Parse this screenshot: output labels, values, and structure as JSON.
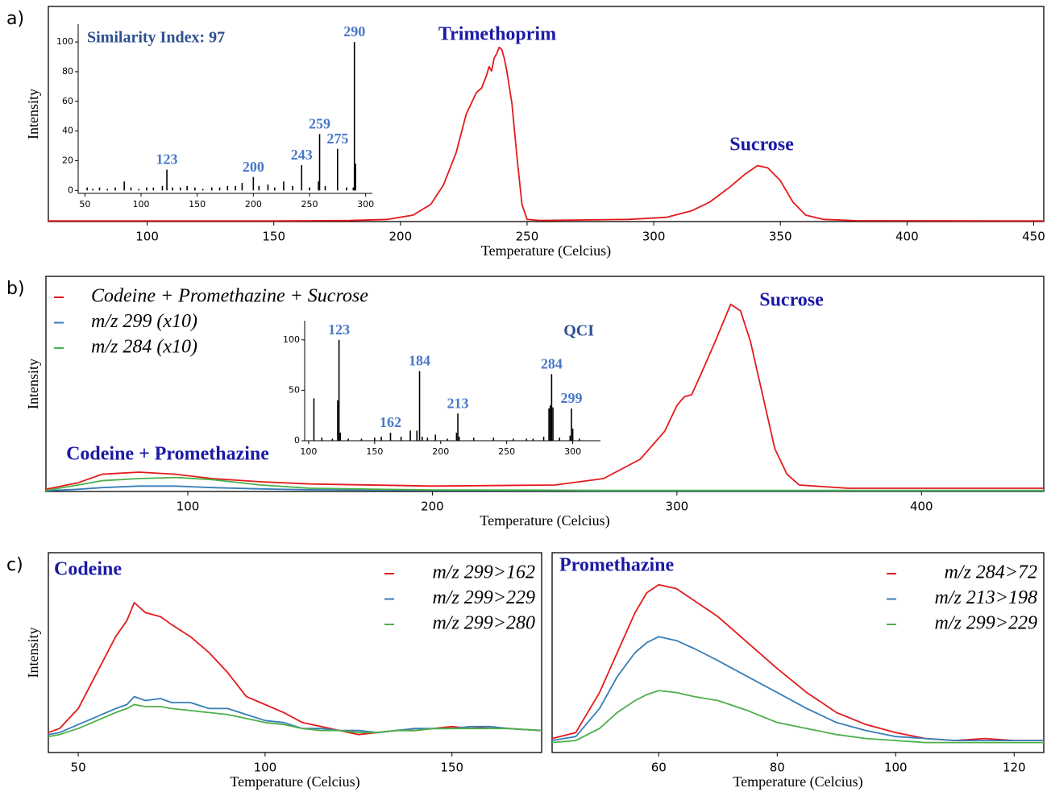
{
  "chart_data": [
    {
      "type": "line",
      "panel": "a)",
      "xlabel": "Temperature (Celcius)",
      "ylabel": "Intensity",
      "color": "#e41a1c",
      "x": [
        61,
        150,
        180,
        195,
        205,
        212,
        217,
        222,
        226,
        230,
        232,
        234,
        235,
        236,
        237,
        238,
        239,
        240,
        241,
        242,
        244,
        246,
        248,
        250,
        255,
        290,
        305,
        315,
        322,
        330,
        336,
        341,
        345,
        350,
        355,
        360,
        367,
        380,
        454
      ],
      "values": [
        0.3,
        0.3,
        0.5,
        1,
        3,
        8,
        17,
        32,
        50,
        60,
        62,
        68,
        72,
        70,
        76,
        78,
        81,
        80,
        76,
        70,
        55,
        30,
        8,
        1,
        0.5,
        1,
        2,
        5,
        9,
        16,
        22,
        26,
        25,
        19,
        9,
        3,
        1,
        0.4,
        0.3
      ],
      "xlim": [
        61,
        454
      ],
      "xticks": [
        100,
        150,
        200,
        250,
        300,
        350,
        400,
        450
      ],
      "ylim": [
        0,
        100
      ],
      "annotations": [
        "Trimethoprim",
        "Sucrose"
      ]
    },
    {
      "type": "stem",
      "title": "Similarity Index: 97",
      "color": "#000000",
      "x": [
        52,
        57,
        63,
        70,
        77,
        85,
        91,
        98,
        105,
        111,
        119,
        123,
        128,
        135,
        141,
        148,
        155,
        163,
        170,
        177,
        184,
        190,
        200,
        205,
        213,
        219,
        227,
        235,
        243,
        250,
        258,
        259,
        264,
        275,
        283,
        289,
        290,
        291
      ],
      "values": [
        2,
        1,
        2,
        1,
        2,
        6,
        2,
        1,
        2,
        2,
        3,
        14,
        2,
        2,
        3,
        2,
        1,
        2,
        2,
        3,
        3,
        5,
        9,
        3,
        4,
        2,
        6,
        3,
        17,
        2,
        6,
        38,
        3,
        28,
        2,
        2,
        100,
        18
      ],
      "peak_labels": [
        123,
        200,
        243,
        259,
        275,
        290
      ],
      "xlim": [
        44,
        306
      ],
      "xticks": [
        50,
        100,
        150,
        200,
        250,
        300
      ],
      "ylim": [
        -2,
        112
      ],
      "yticks": [
        0,
        20,
        40,
        60,
        80,
        100
      ]
    },
    {
      "type": "line",
      "panel": "b)",
      "xlabel": "Temperature (Celcius)",
      "ylabel": "Intensity",
      "legend": "upper left",
      "x": [
        42,
        55,
        65,
        80,
        95,
        110,
        130,
        150,
        200,
        250,
        270,
        285,
        295,
        300,
        303,
        306,
        310,
        315,
        322,
        326,
        330,
        335,
        340,
        345,
        350,
        370,
        450
      ],
      "series": [
        {
          "name": "Codeine + Promethazine + Sucrose",
          "color": "#e41a1c",
          "values": [
            1,
            4,
            8,
            9,
            8,
            6,
            4.5,
            3.5,
            2.5,
            3,
            6,
            15,
            28,
            40,
            44,
            45,
            55,
            68,
            87,
            84,
            70,
            45,
            20,
            8,
            3,
            1.5,
            1.5
          ]
        },
        {
          "name": "m/z 299 (x10)",
          "color": "#377eb8",
          "values": [
            0.3,
            1,
            1.8,
            2.5,
            2.5,
            1.8,
            1.2,
            0.8,
            0.5,
            0.4,
            0.3,
            0.3,
            0.3,
            0.3,
            0.3,
            0.3,
            0.3,
            0.3,
            0.3,
            0.3,
            0.3,
            0.3,
            0.3,
            0.3,
            0.3,
            0.3,
            0.3
          ]
        },
        {
          "name": "m/z 284 (x10)",
          "color": "#4daf4a",
          "values": [
            0.5,
            3,
            5,
            6,
            6.5,
            5.5,
            3,
            1.5,
            0.7,
            0.6,
            0.5,
            0.5,
            0.5,
            0.5,
            0.5,
            0.5,
            0.5,
            0.5,
            0.5,
            0.5,
            0.5,
            0.5,
            0.5,
            0.5,
            0.5,
            0.5,
            0.5
          ]
        }
      ],
      "xlim": [
        42,
        450
      ],
      "xticks": [
        100,
        200,
        300,
        400
      ],
      "ylim": [
        0,
        100
      ],
      "annotations": [
        "Sucrose",
        "Codeine + Promethazine"
      ]
    },
    {
      "type": "stem",
      "title": "QCI",
      "color": "#000000",
      "x": [
        104,
        110,
        118,
        122,
        123,
        124,
        130,
        140,
        150,
        155,
        162,
        170,
        177,
        182,
        184,
        186,
        190,
        196,
        205,
        212,
        213,
        214,
        225,
        240,
        255,
        265,
        270,
        278,
        282,
        283,
        284,
        285,
        290,
        298,
        299,
        300,
        305
      ],
      "values": [
        42,
        3,
        2,
        40,
        100,
        8,
        2,
        2,
        3,
        4,
        8,
        4,
        10,
        10,
        69,
        4,
        3,
        6,
        2,
        8,
        27,
        4,
        3,
        3,
        2,
        2,
        2,
        4,
        32,
        35,
        66,
        33,
        3,
        5,
        32,
        12,
        2
      ],
      "peak_labels": [
        123,
        162,
        184,
        213,
        284,
        299
      ],
      "xlim": [
        97,
        321
      ],
      "xticks": [
        100,
        150,
        200,
        250,
        300
      ],
      "ylim": [
        0,
        119
      ],
      "yticks": [
        0,
        50,
        100
      ]
    },
    {
      "type": "line",
      "panel": "c)",
      "title": "Codeine",
      "xlabel": "Temperature (Celcius)",
      "ylabel": "Intensity",
      "legend": "upper right",
      "x": [
        42,
        45,
        50,
        55,
        60,
        63,
        65,
        68,
        72,
        75,
        80,
        85,
        90,
        95,
        100,
        105,
        110,
        115,
        120,
        125,
        130,
        135,
        140,
        145,
        150,
        155,
        160,
        165,
        174
      ],
      "series": [
        {
          "name": "m/z 299>162",
          "color": "#e41a1c",
          "values": [
            10,
            12,
            22,
            40,
            58,
            66,
            75,
            70,
            68,
            64,
            58,
            50,
            40,
            28,
            24,
            20,
            15,
            13,
            11,
            9,
            10,
            11,
            11,
            12,
            13,
            12,
            13,
            12,
            11
          ]
        },
        {
          "name": "m/z 299>229",
          "color": "#377eb8",
          "values": [
            9,
            10,
            14,
            18,
            22,
            24,
            28,
            26,
            27,
            25,
            25,
            22,
            22,
            19,
            16,
            15,
            12,
            12,
            11,
            11,
            10,
            11,
            12,
            12,
            12,
            13,
            13,
            12,
            11
          ]
        },
        {
          "name": "m/z 299>280",
          "color": "#4daf4a",
          "values": [
            8,
            9,
            12,
            16,
            20,
            22,
            24,
            23,
            23,
            22,
            21,
            20,
            19,
            17,
            15,
            14,
            12,
            11,
            11,
            10,
            10,
            11,
            11,
            12,
            12,
            12,
            12,
            12,
            11
          ]
        }
      ],
      "xlim": [
        42,
        174
      ],
      "xticks": [
        50,
        100,
        150
      ],
      "ylim": [
        0,
        100
      ]
    },
    {
      "type": "line",
      "title": "Promethazine",
      "xlabel": "Temperature (Celcius)",
      "legend": "upper right",
      "x": [
        42,
        46,
        50,
        53,
        56,
        58,
        60,
        63,
        66,
        70,
        75,
        80,
        85,
        90,
        95,
        100,
        105,
        110,
        115,
        120,
        125
      ],
      "series": [
        {
          "name": "m/z 284>72",
          "color": "#e41a1c",
          "values": [
            7,
            10,
            30,
            50,
            70,
            80,
            84,
            82,
            76,
            68,
            55,
            42,
            30,
            20,
            14,
            10,
            7,
            6,
            7,
            6,
            6
          ]
        },
        {
          "name": "m/z 213>198",
          "color": "#377eb8",
          "values": [
            6,
            8,
            22,
            38,
            50,
            55,
            58,
            56,
            52,
            46,
            38,
            30,
            22,
            15,
            11,
            8,
            7,
            6,
            6,
            6,
            6
          ]
        },
        {
          "name": "m/z 299>229",
          "color": "#4daf4a",
          "values": [
            5,
            6,
            12,
            20,
            26,
            29,
            31,
            30,
            28,
            26,
            21,
            15,
            12,
            9,
            7,
            6,
            5,
            5,
            5,
            5,
            5
          ]
        }
      ],
      "xlim": [
        42,
        125
      ],
      "xticks": [
        60,
        80,
        100,
        120
      ],
      "ylim": [
        0,
        100
      ]
    }
  ]
}
